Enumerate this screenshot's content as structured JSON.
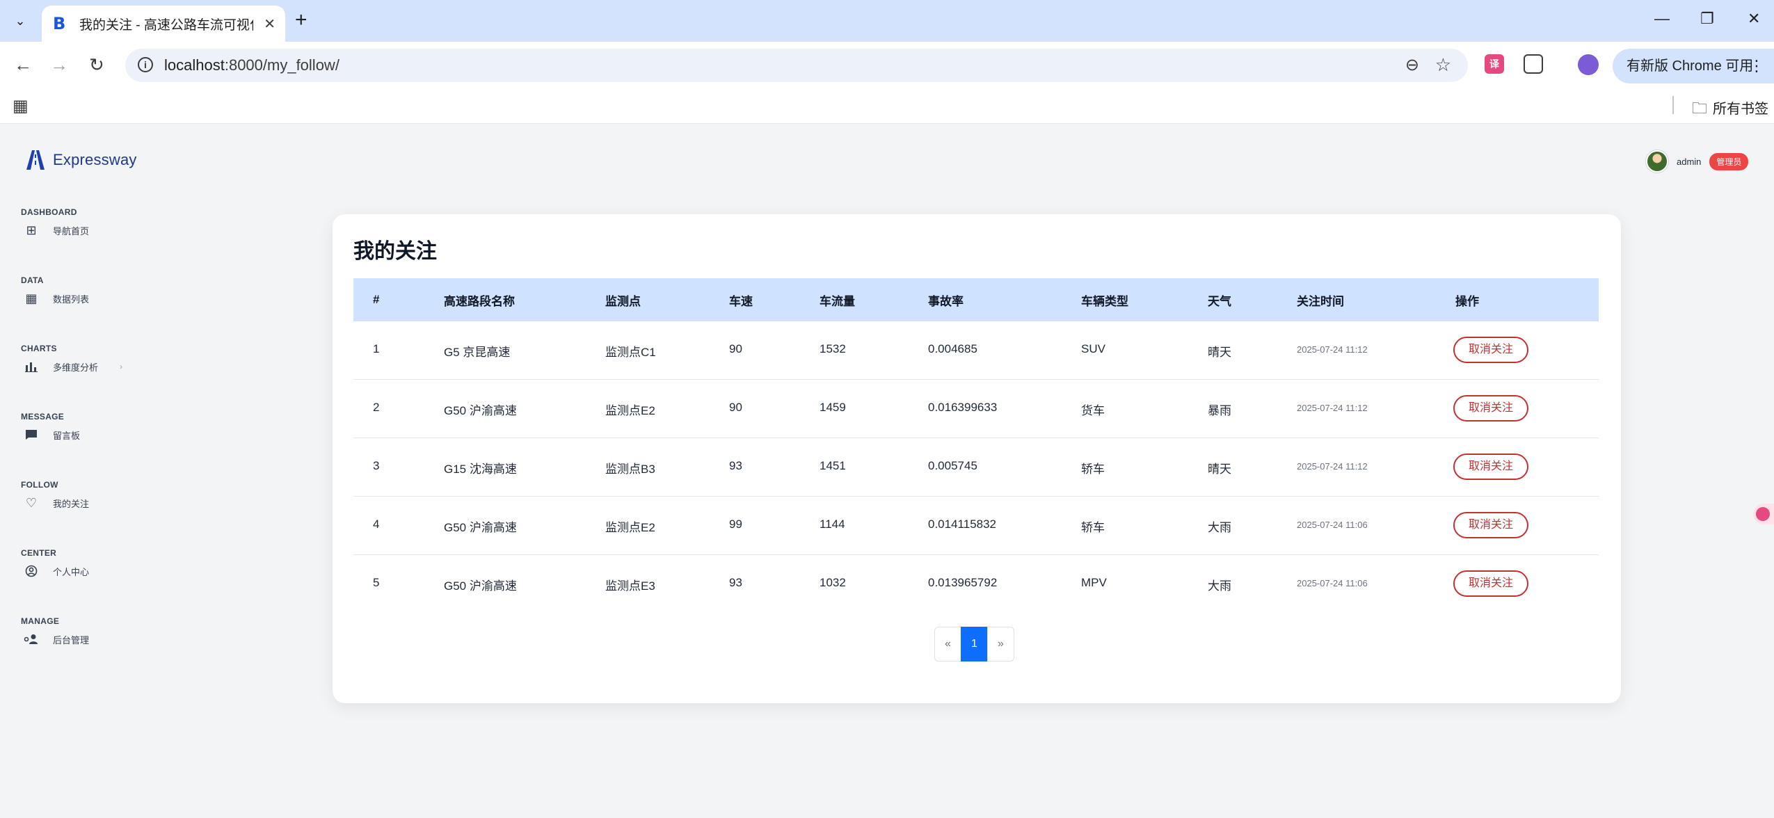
{
  "browser": {
    "tab_title": "我的关注 - 高速公路车流可视化",
    "url_host": "localhost",
    "url_rest": ":8000/my_follow/",
    "update_label": "有新版 Chrome 可用",
    "bookmarks_folder": "所有书签"
  },
  "brand": {
    "name": "Expressway",
    "accent": "#1e3a8a"
  },
  "user": {
    "name": "admin",
    "role": "管理员",
    "role_color": "#ef4444"
  },
  "sidebar": {
    "sections": [
      {
        "title": "DASHBOARD",
        "item": "导航首页",
        "icon": "grid-icon"
      },
      {
        "title": "DATA",
        "item": "数据列表",
        "icon": "table-icon"
      },
      {
        "title": "CHARTS",
        "item": "多维度分析",
        "icon": "bar-chart-icon"
      },
      {
        "title": "MESSAGE",
        "item": "留言板",
        "icon": "chat-icon"
      },
      {
        "title": "FOLLOW",
        "item": "我的关注",
        "icon": "heart-icon"
      },
      {
        "title": "CENTER",
        "item": "个人中心",
        "icon": "user-circle-icon"
      },
      {
        "title": "MANAGE",
        "item": "后台管理",
        "icon": "user-cog-icon"
      }
    ]
  },
  "page": {
    "title": "我的关注"
  },
  "table": {
    "headers": [
      "#",
      "高速路段名称",
      "监测点",
      "车速",
      "车流量",
      "事故率",
      "车辆类型",
      "天气",
      "关注时间",
      "操作"
    ],
    "rows": [
      {
        "no": "1",
        "road": "G5 京昆高速",
        "point": "监测点C1",
        "speed": "90",
        "flow": "1532",
        "accident": "0.004685",
        "vehicle": "SUV",
        "weather": "晴天",
        "time": "2025-07-24 11:12",
        "action": "取消关注"
      },
      {
        "no": "2",
        "road": "G50 沪渝高速",
        "point": "监测点E2",
        "speed": "90",
        "flow": "1459",
        "accident": "0.016399633",
        "vehicle": "货车",
        "weather": "暴雨",
        "time": "2025-07-24 11:12",
        "action": "取消关注"
      },
      {
        "no": "3",
        "road": "G15 沈海高速",
        "point": "监测点B3",
        "speed": "93",
        "flow": "1451",
        "accident": "0.005745",
        "vehicle": "轿车",
        "weather": "晴天",
        "time": "2025-07-24 11:12",
        "action": "取消关注"
      },
      {
        "no": "4",
        "road": "G50 沪渝高速",
        "point": "监测点E2",
        "speed": "99",
        "flow": "1144",
        "accident": "0.014115832",
        "vehicle": "轿车",
        "weather": "大雨",
        "time": "2025-07-24 11:06",
        "action": "取消关注"
      },
      {
        "no": "5",
        "road": "G50 沪渝高速",
        "point": "监测点E3",
        "speed": "93",
        "flow": "1032",
        "accident": "0.013965792",
        "vehicle": "MPV",
        "weather": "大雨",
        "time": "2025-07-24 11:06",
        "action": "取消关注"
      }
    ]
  },
  "pagination": {
    "prev": "«",
    "current": "1",
    "next": "»",
    "active_color": "#0d6efd"
  }
}
